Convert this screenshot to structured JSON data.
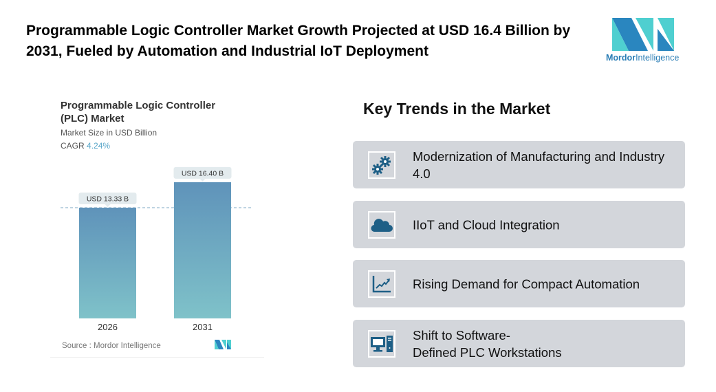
{
  "header": {
    "title": "Programmable Logic Controller Market Growth Projected at USD 16.4 Billion by 2031, Fueled by Automation and Industrial IoT Deployment"
  },
  "logo": {
    "text_bold": "Mordor",
    "text_light": "Intelligence"
  },
  "chart_data": {
    "type": "bar",
    "title": "Programmable Logic Controller (PLC) Market",
    "subtitle": "Market Size in USD Billion",
    "cagr_label": "CAGR",
    "cagr_value": "4.24%",
    "categories": [
      "2026",
      "2031"
    ],
    "values": [
      13.33,
      16.4
    ],
    "data_labels": [
      "USD 13.33 B",
      "USD 16.40 B"
    ],
    "ylim": [
      0,
      17
    ],
    "source": "Source :  Mordor Intelligence",
    "colors": {
      "bar_top": "#5f93ba",
      "bar_bottom": "#7fc2c9",
      "label_bg": "#e3ebee",
      "dash": "#7fa9c4"
    }
  },
  "trends": {
    "heading": "Key Trends in the Market",
    "items": [
      {
        "label": "Modernization of Manufacturing and Industry 4.0",
        "icon": "gears-icon"
      },
      {
        "label": "IIoT and Cloud Integration",
        "icon": "cloud-icon"
      },
      {
        "label": "Rising Demand for Compact Automation",
        "icon": "line-chart-icon"
      },
      {
        "label": "Shift to Software-\nDefined PLC Workstations",
        "icon": "desktop-computer-icon"
      }
    ],
    "icon_color": "#1e5f86"
  }
}
